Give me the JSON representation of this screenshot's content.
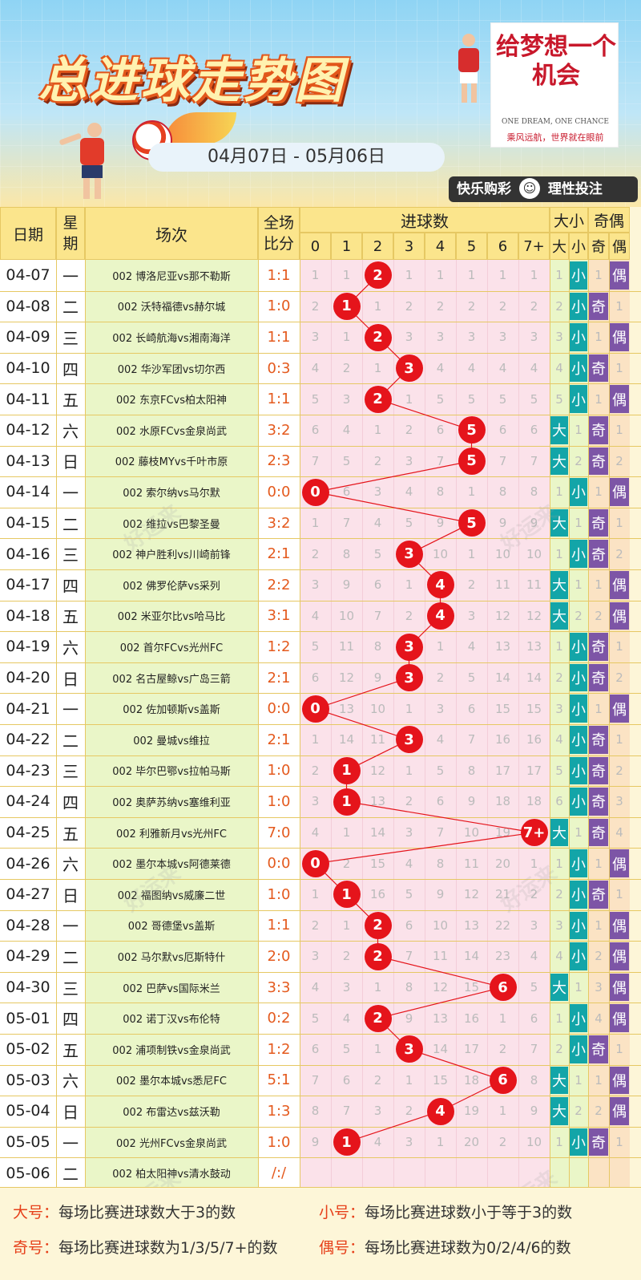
{
  "header": {
    "title": "总进球走势图",
    "date_range": "04月07日 - 05月06日",
    "brand_main": "给梦想一个机会",
    "brand_en": "ONE DREAM, ONE CHANCE",
    "brand_cn": "乘风远航，世界就在眼前",
    "slogan_left": "快乐购彩",
    "slogan_right": "理性投注",
    "watermark": "好运来"
  },
  "table_header": {
    "date": "日期",
    "weekday": "星期",
    "match": "场次",
    "score": "全场比分",
    "goals": "进球数",
    "goal_cols": [
      "0",
      "1",
      "2",
      "3",
      "4",
      "5",
      "6",
      "7+"
    ],
    "size": "大小",
    "size_cols": [
      "大",
      "小"
    ],
    "parity": "奇偶",
    "parity_cols": [
      "奇",
      "偶"
    ]
  },
  "colors": {
    "ball": "#e5141b",
    "big": "#13a5a8",
    "small": "#13a5a8",
    "odd": "#7d55a6",
    "even": "#7d55a6"
  },
  "rows": [
    {
      "date": "04-07",
      "wk": "一",
      "match": "002 博洛尼亚vs那不勒斯",
      "score": "1:1",
      "g": [
        "1",
        "1",
        "2",
        "1",
        "1",
        "1",
        "1",
        "1"
      ],
      "hit": 2,
      "s": [
        "1",
        "小"
      ],
      "p": [
        "1",
        "偶"
      ]
    },
    {
      "date": "04-08",
      "wk": "二",
      "match": "002 沃特福德vs赫尔城",
      "score": "1:0",
      "g": [
        "2",
        "1",
        "1",
        "2",
        "2",
        "2",
        "2",
        "2"
      ],
      "hit": 1,
      "s": [
        "2",
        "小"
      ],
      "p": [
        "奇",
        "1"
      ]
    },
    {
      "date": "04-09",
      "wk": "三",
      "match": "002 长崎航海vs湘南海洋",
      "score": "1:1",
      "g": [
        "3",
        "1",
        "2",
        "3",
        "3",
        "3",
        "3",
        "3"
      ],
      "hit": 2,
      "s": [
        "3",
        "小"
      ],
      "p": [
        "1",
        "偶"
      ]
    },
    {
      "date": "04-10",
      "wk": "四",
      "match": "002 华沙军团vs切尔西",
      "score": "0:3",
      "g": [
        "4",
        "2",
        "1",
        "3",
        "4",
        "4",
        "4",
        "4"
      ],
      "hit": 3,
      "s": [
        "4",
        "小"
      ],
      "p": [
        "奇",
        "1"
      ]
    },
    {
      "date": "04-11",
      "wk": "五",
      "match": "002 东京FCvs柏太阳神",
      "score": "1:1",
      "g": [
        "5",
        "3",
        "2",
        "1",
        "5",
        "5",
        "5",
        "5"
      ],
      "hit": 2,
      "s": [
        "5",
        "小"
      ],
      "p": [
        "1",
        "偶"
      ]
    },
    {
      "date": "04-12",
      "wk": "六",
      "match": "002 水原FCvs金泉尚武",
      "score": "3:2",
      "g": [
        "6",
        "4",
        "1",
        "2",
        "6",
        "5",
        "6",
        "6"
      ],
      "hit": 5,
      "s": [
        "大",
        "1"
      ],
      "p": [
        "奇",
        "1"
      ]
    },
    {
      "date": "04-13",
      "wk": "日",
      "match": "002 藤枝MYvs千叶市原",
      "score": "2:3",
      "g": [
        "7",
        "5",
        "2",
        "3",
        "7",
        "5",
        "7",
        "7"
      ],
      "hit": 5,
      "s": [
        "大",
        "2"
      ],
      "p": [
        "奇",
        "2"
      ]
    },
    {
      "date": "04-14",
      "wk": "一",
      "match": "002 索尔纳vs马尔默",
      "score": "0:0",
      "g": [
        "0",
        "6",
        "3",
        "4",
        "8",
        "1",
        "8",
        "8"
      ],
      "hit": 0,
      "s": [
        "1",
        "小"
      ],
      "p": [
        "1",
        "偶"
      ]
    },
    {
      "date": "04-15",
      "wk": "二",
      "match": "002 维拉vs巴黎圣曼",
      "score": "3:2",
      "g": [
        "1",
        "7",
        "4",
        "5",
        "9",
        "5",
        "9",
        "9"
      ],
      "hit": 5,
      "s": [
        "大",
        "1"
      ],
      "p": [
        "奇",
        "1"
      ]
    },
    {
      "date": "04-16",
      "wk": "三",
      "match": "002 神户胜利vs川崎前锋",
      "score": "2:1",
      "g": [
        "2",
        "8",
        "5",
        "3",
        "10",
        "1",
        "10",
        "10"
      ],
      "hit": 3,
      "s": [
        "1",
        "小"
      ],
      "p": [
        "奇",
        "2"
      ]
    },
    {
      "date": "04-17",
      "wk": "四",
      "match": "002 佛罗伦萨vs采列",
      "score": "2:2",
      "g": [
        "3",
        "9",
        "6",
        "1",
        "4",
        "2",
        "11",
        "11"
      ],
      "hit": 4,
      "s": [
        "大",
        "1"
      ],
      "p": [
        "1",
        "偶"
      ]
    },
    {
      "date": "04-18",
      "wk": "五",
      "match": "002 米亚尔比vs哈马比",
      "score": "3:1",
      "g": [
        "4",
        "10",
        "7",
        "2",
        "4",
        "3",
        "12",
        "12"
      ],
      "hit": 4,
      "s": [
        "大",
        "2"
      ],
      "p": [
        "2",
        "偶"
      ]
    },
    {
      "date": "04-19",
      "wk": "六",
      "match": "002 首尔FCvs光州FC",
      "score": "1:2",
      "g": [
        "5",
        "11",
        "8",
        "3",
        "1",
        "4",
        "13",
        "13"
      ],
      "hit": 3,
      "s": [
        "1",
        "小"
      ],
      "p": [
        "奇",
        "1"
      ]
    },
    {
      "date": "04-20",
      "wk": "日",
      "match": "002 名古屋鲸vs广岛三箭",
      "score": "2:1",
      "g": [
        "6",
        "12",
        "9",
        "3",
        "2",
        "5",
        "14",
        "14"
      ],
      "hit": 3,
      "s": [
        "2",
        "小"
      ],
      "p": [
        "奇",
        "2"
      ]
    },
    {
      "date": "04-21",
      "wk": "一",
      "match": "002 佐加顿斯vs盖斯",
      "score": "0:0",
      "g": [
        "0",
        "13",
        "10",
        "1",
        "3",
        "6",
        "15",
        "15"
      ],
      "hit": 0,
      "s": [
        "3",
        "小"
      ],
      "p": [
        "1",
        "偶"
      ]
    },
    {
      "date": "04-22",
      "wk": "二",
      "match": "002 曼城vs维拉",
      "score": "2:1",
      "g": [
        "1",
        "14",
        "11",
        "3",
        "4",
        "7",
        "16",
        "16"
      ],
      "hit": 3,
      "s": [
        "4",
        "小"
      ],
      "p": [
        "奇",
        "1"
      ]
    },
    {
      "date": "04-23",
      "wk": "三",
      "match": "002 毕尔巴鄂vs拉帕马斯",
      "score": "1:0",
      "g": [
        "2",
        "1",
        "12",
        "1",
        "5",
        "8",
        "17",
        "17"
      ],
      "hit": 1,
      "s": [
        "5",
        "小"
      ],
      "p": [
        "奇",
        "2"
      ]
    },
    {
      "date": "04-24",
      "wk": "四",
      "match": "002 奥萨苏纳vs塞维利亚",
      "score": "1:0",
      "g": [
        "3",
        "1",
        "13",
        "2",
        "6",
        "9",
        "18",
        "18"
      ],
      "hit": 1,
      "s": [
        "6",
        "小"
      ],
      "p": [
        "奇",
        "3"
      ]
    },
    {
      "date": "04-25",
      "wk": "五",
      "match": "002 利雅新月vs光州FC",
      "score": "7:0",
      "g": [
        "4",
        "1",
        "14",
        "3",
        "7",
        "10",
        "19",
        "7+"
      ],
      "hit": 7,
      "s": [
        "大",
        "1"
      ],
      "p": [
        "奇",
        "4"
      ]
    },
    {
      "date": "04-26",
      "wk": "六",
      "match": "002 墨尔本城vs阿德莱德",
      "score": "0:0",
      "g": [
        "0",
        "2",
        "15",
        "4",
        "8",
        "11",
        "20",
        "1"
      ],
      "hit": 0,
      "s": [
        "1",
        "小"
      ],
      "p": [
        "1",
        "偶"
      ]
    },
    {
      "date": "04-27",
      "wk": "日",
      "match": "002 福图纳vs威廉二世",
      "score": "1:0",
      "g": [
        "1",
        "1",
        "16",
        "5",
        "9",
        "12",
        "21",
        "2"
      ],
      "hit": 1,
      "s": [
        "2",
        "小"
      ],
      "p": [
        "奇",
        "1"
      ]
    },
    {
      "date": "04-28",
      "wk": "一",
      "match": "002 哥德堡vs盖斯",
      "score": "1:1",
      "g": [
        "2",
        "1",
        "2",
        "6",
        "10",
        "13",
        "22",
        "3"
      ],
      "hit": 2,
      "s": [
        "3",
        "小"
      ],
      "p": [
        "1",
        "偶"
      ]
    },
    {
      "date": "04-29",
      "wk": "二",
      "match": "002 马尔默vs厄斯特什",
      "score": "2:0",
      "g": [
        "3",
        "2",
        "2",
        "7",
        "11",
        "14",
        "23",
        "4"
      ],
      "hit": 2,
      "s": [
        "4",
        "小"
      ],
      "p": [
        "2",
        "偶"
      ]
    },
    {
      "date": "04-30",
      "wk": "三",
      "match": "002 巴萨vs国际米兰",
      "score": "3:3",
      "g": [
        "4",
        "3",
        "1",
        "8",
        "12",
        "15",
        "6",
        "5"
      ],
      "hit": 6,
      "s": [
        "大",
        "1"
      ],
      "p": [
        "3",
        "偶"
      ]
    },
    {
      "date": "05-01",
      "wk": "四",
      "match": "002 诺丁汉vs布伦特",
      "score": "0:2",
      "g": [
        "5",
        "4",
        "2",
        "9",
        "13",
        "16",
        "1",
        "6"
      ],
      "hit": 2,
      "s": [
        "1",
        "小"
      ],
      "p": [
        "4",
        "偶"
      ]
    },
    {
      "date": "05-02",
      "wk": "五",
      "match": "002 浦项制铁vs金泉尚武",
      "score": "1:2",
      "g": [
        "6",
        "5",
        "1",
        "3",
        "14",
        "17",
        "2",
        "7"
      ],
      "hit": 3,
      "s": [
        "2",
        "小"
      ],
      "p": [
        "奇",
        "1"
      ]
    },
    {
      "date": "05-03",
      "wk": "六",
      "match": "002 墨尔本城vs悉尼FC",
      "score": "5:1",
      "g": [
        "7",
        "6",
        "2",
        "1",
        "15",
        "18",
        "6",
        "8"
      ],
      "hit": 6,
      "s": [
        "大",
        "1"
      ],
      "p": [
        "1",
        "偶"
      ]
    },
    {
      "date": "05-04",
      "wk": "日",
      "match": "002 布雷达vs兹沃勒",
      "score": "1:3",
      "g": [
        "8",
        "7",
        "3",
        "2",
        "4",
        "19",
        "1",
        "9"
      ],
      "hit": 4,
      "s": [
        "大",
        "2"
      ],
      "p": [
        "2",
        "偶"
      ]
    },
    {
      "date": "05-05",
      "wk": "一",
      "match": "002 光州FCvs金泉尚武",
      "score": "1:0",
      "g": [
        "9",
        "1",
        "4",
        "3",
        "1",
        "20",
        "2",
        "10"
      ],
      "hit": 1,
      "s": [
        "1",
        "小"
      ],
      "p": [
        "奇",
        "1"
      ]
    },
    {
      "date": "05-06",
      "wk": "二",
      "match": "002 柏太阳神vs清水鼓动",
      "score": "/:/",
      "g": [
        "",
        "",
        "",
        "",
        "",
        "",
        "",
        ""
      ],
      "hit": -1,
      "s": [
        "",
        ""
      ],
      "p": [
        "",
        ""
      ]
    }
  ],
  "footer": {
    "big_label": "大号：",
    "big_text": "每场比赛进球数大于3的数",
    "small_label": "小号：",
    "small_text": "每场比赛进球数小于等于3的数",
    "odd_label": "奇号：",
    "odd_text": "每场比赛进球数为1/3/5/7+的数",
    "even_label": "偶号：",
    "even_text": "每场比赛进球数为0/2/4/6的数"
  }
}
